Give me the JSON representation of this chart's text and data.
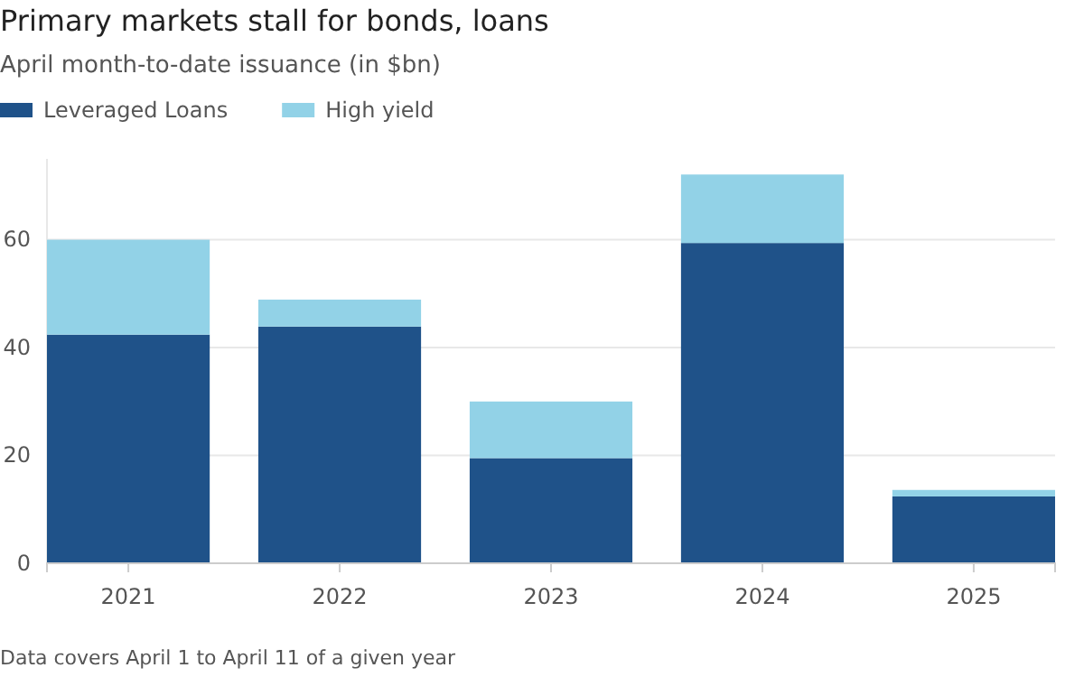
{
  "chart_data": {
    "type": "bar",
    "title": "Primary markets stall for bonds, loans",
    "subtitle": "April month-to-date issuance (in $bn)",
    "categories": [
      "2021",
      "2022",
      "2023",
      "2024",
      "2025"
    ],
    "stacked": true,
    "series": [
      {
        "name": "Leveraged Loans",
        "color": "#1f5289",
        "values": [
          42.4,
          43.9,
          19.5,
          59.4,
          12.4
        ]
      },
      {
        "name": "High yield",
        "color": "#92d2e7",
        "values": [
          17.6,
          5,
          10.5,
          12.7,
          1.2
        ]
      }
    ],
    "ylim": [
      0,
      75
    ],
    "yticks": [
      0,
      20,
      40,
      60
    ],
    "grid": "y",
    "legend": "top left",
    "annotations": [
      "Data covers April 1 to April 11 of a given year"
    ]
  }
}
